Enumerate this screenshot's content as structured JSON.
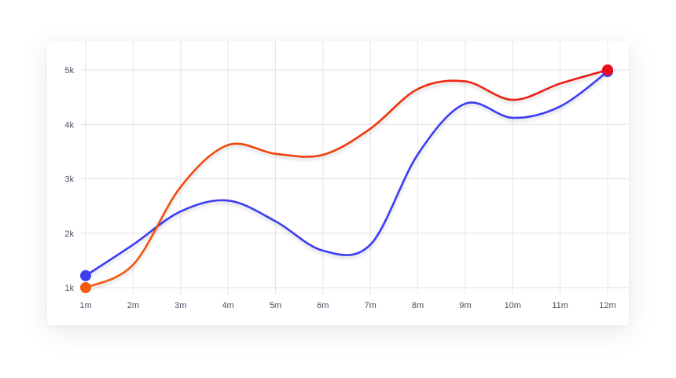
{
  "chart_data": {
    "type": "line",
    "title": "",
    "xlabel": "",
    "ylabel": "",
    "categories": [
      "1m",
      "2m",
      "3m",
      "4m",
      "5m",
      "6m",
      "7m",
      "8m",
      "9m",
      "10m",
      "11m",
      "12m"
    ],
    "y_ticks": [
      "1k",
      "2k",
      "3k",
      "4k",
      "5k"
    ],
    "ylim": [
      1000,
      5000
    ],
    "grid": true,
    "legend": "none",
    "series": [
      {
        "color": "#3d3df2",
        "values": [
          1220,
          1790,
          2400,
          2600,
          2220,
          1680,
          1790,
          3450,
          4380,
          4120,
          4330,
          4970
        ]
      },
      {
        "color": "#ee2d12",
        "start_color": "#f25a0a",
        "end_color": "#ef0c1a",
        "values": [
          1000,
          1420,
          2850,
          3620,
          3460,
          3440,
          3920,
          4650,
          4790,
          4450,
          4750,
          5000
        ]
      }
    ]
  }
}
